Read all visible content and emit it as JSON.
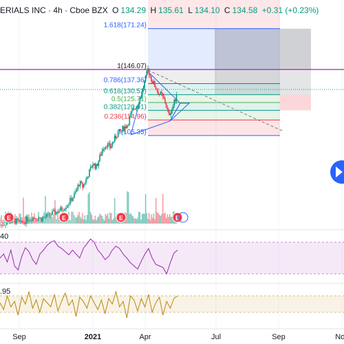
{
  "header": {
    "title": "ERIALS INC · 4h · Cboe BZX",
    "o_label": "O",
    "o_value": "134.29",
    "h_label": "H",
    "h_value": "135.61",
    "l_label": "L",
    "l_value": "134.10",
    "c_label": "C",
    "c_value": "134.58",
    "change": "+0.31 (+0.23%)"
  },
  "colors": {
    "up": "#089981",
    "down": "#f23645",
    "fib_blue": "#2962ff",
    "purple_line": "#9c27b0",
    "rsi_line": "#9c27b0",
    "osc_line": "#b8860b"
  },
  "chart_data": [
    {
      "type": "candlestick",
      "x_ticks": [
        "Sep",
        "2021",
        "Apr",
        "Jul",
        "Sep",
        "Nov"
      ],
      "fib_levels": [
        {
          "ratio": 1.618,
          "price": 171.24,
          "label": "1.618(171.24)"
        },
        {
          "ratio": 1,
          "price": 146.07,
          "label": "1(146.07)"
        },
        {
          "ratio": 0.786,
          "price": 137.36,
          "label": "0.786(137.36)"
        },
        {
          "ratio": 0.618,
          "price": 130.52,
          "label": "0.618(130.52)"
        },
        {
          "ratio": 0.5,
          "price": 125.71,
          "label": "0.5(125.71)"
        },
        {
          "ratio": 0.382,
          "price": 120.91,
          "label": "0.382(120.91)"
        },
        {
          "ratio": 0.236,
          "price": 114.96,
          "label": "0.236(114.96)"
        },
        {
          "ratio": 0,
          "price": 105.35,
          "label": "0(105.35)"
        }
      ],
      "last_price": 134.58,
      "close_path": [
        [
          0,
          50
        ],
        [
          10,
          52
        ],
        [
          20,
          53
        ],
        [
          30,
          51
        ],
        [
          40,
          54
        ],
        [
          50,
          55
        ],
        [
          60,
          54
        ],
        [
          70,
          56
        ],
        [
          80,
          58
        ],
        [
          90,
          60
        ],
        [
          100,
          64
        ],
        [
          110,
          70
        ],
        [
          115,
          76
        ],
        [
          120,
          74
        ],
        [
          125,
          78
        ],
        [
          130,
          83
        ],
        [
          135,
          88
        ],
        [
          140,
          86
        ],
        [
          145,
          92
        ],
        [
          150,
          98
        ],
        [
          155,
          100
        ],
        [
          160,
          98
        ],
        [
          165,
          102
        ],
        [
          170,
          106
        ],
        [
          175,
          108
        ],
        [
          180,
          110
        ],
        [
          185,
          112
        ],
        [
          190,
          118
        ],
        [
          195,
          122
        ],
        [
          200,
          125
        ],
        [
          205,
          130
        ],
        [
          210,
          138
        ],
        [
          215,
          146
        ],
        [
          220,
          140
        ],
        [
          225,
          136
        ],
        [
          230,
          132
        ],
        [
          235,
          130
        ],
        [
          240,
          126
        ],
        [
          245,
          118
        ],
        [
          250,
          122
        ],
        [
          255,
          128
        ],
        [
          258,
          134.58
        ]
      ],
      "earnings_markers": [
        13,
        93,
        176,
        258
      ],
      "earnings_label": "E"
    },
    {
      "type": "line",
      "name": "rsi",
      "label": "40",
      "band": [
        30,
        70
      ],
      "ylim": [
        20,
        80
      ],
      "values": [
        50,
        55,
        45,
        60,
        40,
        35,
        52,
        63,
        58,
        48,
        42,
        55,
        60,
        66,
        70,
        72,
        65,
        62,
        58,
        54,
        60,
        55,
        50,
        62,
        68,
        74,
        70,
        60,
        55,
        48,
        52,
        60,
        65,
        62,
        55,
        50,
        44,
        40,
        36,
        46,
        55,
        62,
        50,
        42,
        40,
        38,
        30,
        44,
        56,
        60
      ]
    },
    {
      "type": "line",
      "name": "oscillator",
      "label": ".95",
      "band": [
        -0.3,
        0.3
      ],
      "ylim": [
        -1.5,
        1.5
      ],
      "values": [
        0.1,
        -0.4,
        0.6,
        -0.2,
        0.2,
        -0.8,
        0.5,
        0.0,
        0.9,
        -0.3,
        0.3,
        -0.6,
        0.4,
        0.1,
        -0.2,
        0.7,
        -0.5,
        0.2,
        0.8,
        -0.1,
        0.3,
        -0.9,
        0.5,
        0.2,
        -0.3,
        0.6,
        0.1,
        -0.4,
        0.3,
        -0.7,
        0.4,
        0.0,
        0.9,
        -0.2,
        0.2,
        -1.0,
        0.6,
        0.3,
        -0.5,
        0.4,
        -0.2,
        0.7,
        -0.6,
        0.1,
        0.5,
        -0.8,
        0.2,
        -0.3,
        0.4,
        0.6
      ]
    }
  ]
}
